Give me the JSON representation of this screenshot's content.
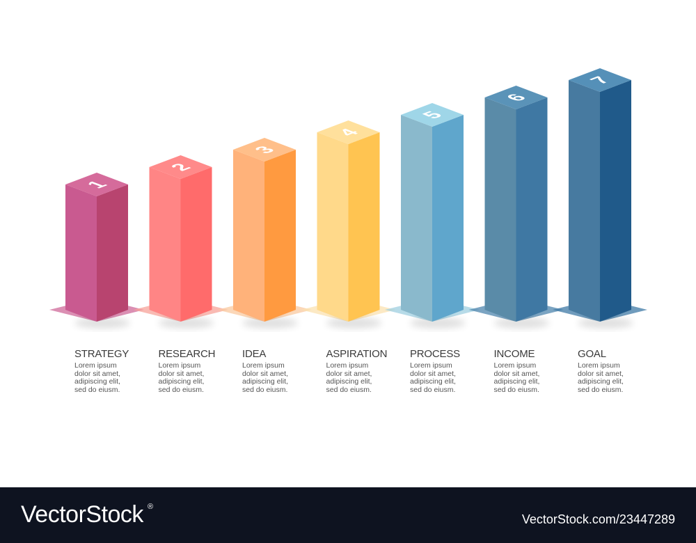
{
  "steps": [
    {
      "number": "1",
      "title": "STRATEGY",
      "text": [
        "Lorem ipsum",
        "dolor sit amet,",
        "adipiscing elit,",
        "sed do eiusm."
      ],
      "colors": {
        "top": "#d56b9b",
        "left": "#c95a90",
        "right": "#b8446f",
        "shadow": "#cf6a99"
      }
    },
    {
      "number": "2",
      "title": "RESEARCH",
      "text": [
        "Lorem ipsum",
        "dolor sit amet,",
        "adipiscing elit,",
        "sed do eiusm."
      ],
      "colors": {
        "top": "#ff8a8a",
        "left": "#ff8585",
        "right": "#ff6b6b",
        "shadow": "#f7a39a"
      }
    },
    {
      "number": "3",
      "title": "IDEA",
      "text": [
        "Lorem ipsum",
        "dolor sit amet,",
        "adipiscing elit,",
        "sed do eiusm."
      ],
      "colors": {
        "top": "#ffbf8a",
        "left": "#ffb27a",
        "right": "#ff9a40",
        "shadow": "#fac9a0"
      }
    },
    {
      "number": "4",
      "title": "ASPIRATION",
      "text": [
        "Lorem ipsum",
        "dolor sit amet,",
        "adipiscing elit,",
        "sed do eiusm."
      ],
      "colors": {
        "top": "#ffe09c",
        "left": "#ffd98a",
        "right": "#ffc451",
        "shadow": "#fbe1b0"
      }
    },
    {
      "number": "5",
      "title": "PROCESS",
      "text": [
        "Lorem ipsum",
        "dolor sit amet,",
        "adipiscing elit,",
        "sed do eiusm."
      ],
      "colors": {
        "top": "#9fd6e8",
        "left": "#8ab9cc",
        "right": "#5fa6cc",
        "shadow": "#9fcfe0"
      }
    },
    {
      "number": "6",
      "title": "INCOME",
      "text": [
        "Lorem ipsum",
        "dolor sit amet,",
        "adipiscing elit,",
        "sed do eiusm."
      ],
      "colors": {
        "top": "#5a93b8",
        "left": "#5a8ba8",
        "right": "#3f78a3",
        "shadow": "#4f86ad"
      }
    },
    {
      "number": "7",
      "title": "GOAL",
      "text": [
        "Lorem ipsum",
        "dolor sit amet,",
        "adipiscing elit,",
        "sed do eiusm."
      ],
      "colors": {
        "top": "#5590b8",
        "left": "#477aa0",
        "right": "#205a8a",
        "shadow": "#3f79a6"
      }
    }
  ],
  "bar_levels": [
    1,
    2,
    3,
    4,
    5,
    6,
    7
  ],
  "footer": {
    "brand": "VectorStock",
    "registered": "®",
    "image_id": "VectorStock.com/23447289"
  }
}
